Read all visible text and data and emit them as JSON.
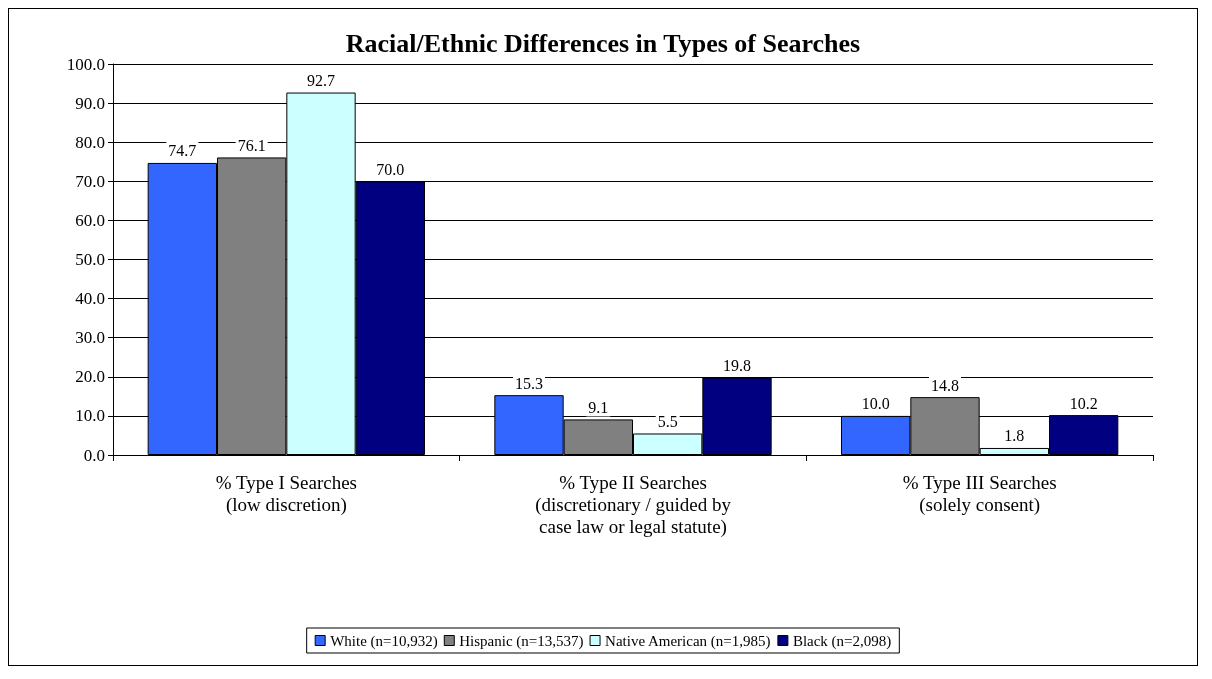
{
  "chart_data": {
    "type": "bar",
    "title": "Racial/Ethnic Differences in Types of Searches",
    "categories": [
      "% Type I Searches\n(low discretion)",
      "% Type II Searches\n(discretionary / guided by\ncase law or legal statute)",
      "% Type III Searches\n(solely consent)"
    ],
    "series": [
      {
        "name": "White (n=10,932)",
        "color": "#3366ff",
        "values": [
          74.7,
          15.3,
          10.0
        ],
        "value_labels": [
          "74.7",
          "15.3",
          "10.0"
        ]
      },
      {
        "name": "Hispanic (n=13,537)",
        "color": "#808080",
        "values": [
          76.1,
          9.1,
          14.8
        ],
        "value_labels": [
          "76.1",
          "9.1",
          "14.8"
        ]
      },
      {
        "name": "Native American (n=1,985)",
        "color": "#ccffff",
        "values": [
          92.7,
          5.5,
          1.8
        ],
        "value_labels": [
          "92.7",
          "5.5",
          "1.8"
        ]
      },
      {
        "name": "Black (n=2,098)",
        "color": "#000080",
        "values": [
          70.0,
          19.8,
          10.2
        ],
        "value_labels": [
          "70.0",
          "19.8",
          "10.2"
        ]
      }
    ],
    "ylim": [
      0,
      100
    ],
    "yticks": [
      {
        "value": 0,
        "label": "0.0"
      },
      {
        "value": 10,
        "label": "10.0"
      },
      {
        "value": 20,
        "label": "20.0"
      },
      {
        "value": 30,
        "label": "30.0"
      },
      {
        "value": 40,
        "label": "40.0"
      },
      {
        "value": 50,
        "label": "50.0"
      },
      {
        "value": 60,
        "label": "60.0"
      },
      {
        "value": 70,
        "label": "70.0"
      },
      {
        "value": 80,
        "label": "80.0"
      },
      {
        "value": 90,
        "label": "90.0"
      },
      {
        "value": 100,
        "label": "100.0"
      }
    ],
    "grid": "y",
    "legend": "bottom"
  }
}
